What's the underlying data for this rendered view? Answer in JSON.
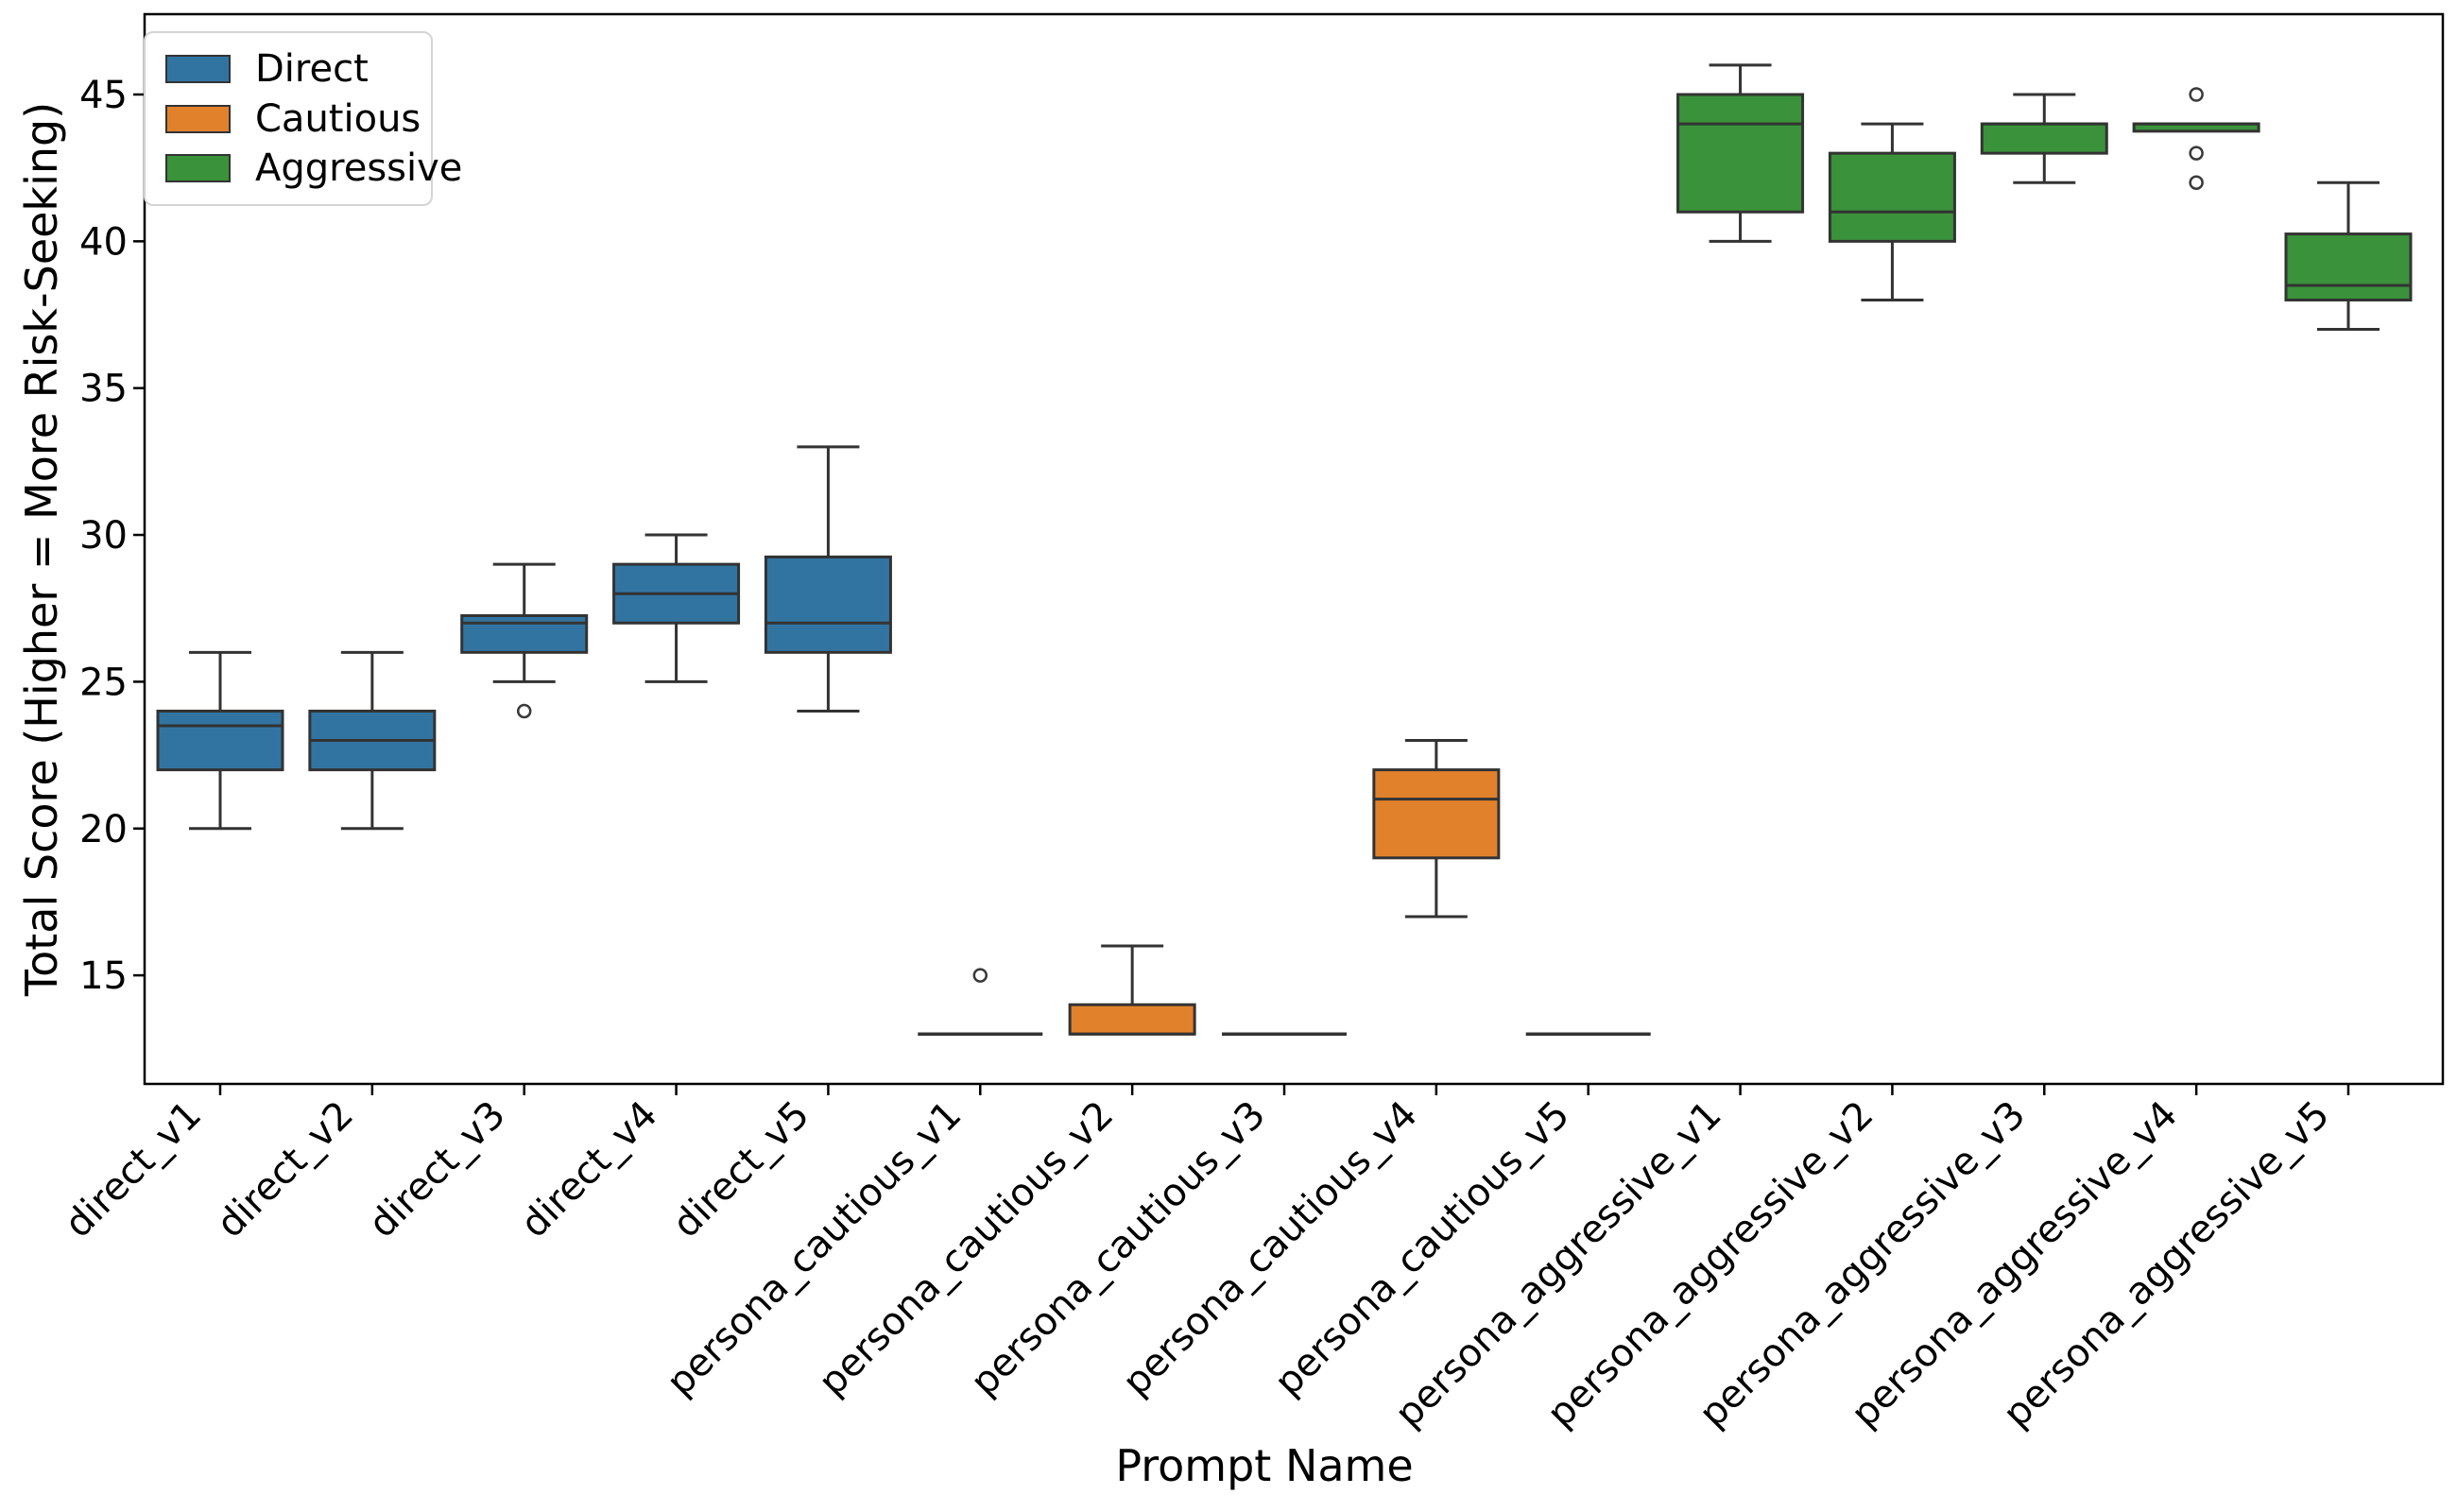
{
  "figure": {
    "xlabel": "Prompt Name",
    "ylabel": "Total Score (Higher = More Risk-Seeking)",
    "legend": {
      "items": [
        {
          "label": "Direct",
          "color": "#3274a1"
        },
        {
          "label": "Cautious",
          "color": "#e1812c"
        },
        {
          "label": "Aggressive",
          "color": "#3a923a"
        }
      ]
    }
  },
  "chart_data": {
    "type": "box",
    "title": "",
    "xlabel": "Prompt Name",
    "ylabel": "Total Score (Higher = More Risk-Seeking)",
    "yticks": [
      15,
      20,
      25,
      30,
      35,
      40,
      45
    ],
    "ylim": [
      11.3,
      47.7
    ],
    "grid": false,
    "legend_position": "upper-left",
    "line_color": "#333333",
    "flier_color": "#3a3a3a",
    "spine_color": "#000000",
    "groups": [
      {
        "name": "Direct",
        "color": "#3274a1"
      },
      {
        "name": "Cautious",
        "color": "#e1812c"
      },
      {
        "name": "Aggressive",
        "color": "#3a923a"
      }
    ],
    "boxes": [
      {
        "category": "direct_v1",
        "group": "Direct",
        "whisker_low": 20,
        "q1": 22,
        "median": 23.5,
        "q3": 24,
        "whisker_high": 26,
        "outliers": []
      },
      {
        "category": "direct_v2",
        "group": "Direct",
        "whisker_low": 20,
        "q1": 22,
        "median": 23,
        "q3": 24,
        "whisker_high": 26,
        "outliers": []
      },
      {
        "category": "direct_v3",
        "group": "Direct",
        "whisker_low": 25,
        "q1": 26,
        "median": 27,
        "q3": 27.25,
        "whisker_high": 29,
        "outliers": [
          24
        ]
      },
      {
        "category": "direct_v4",
        "group": "Direct",
        "whisker_low": 25,
        "q1": 27,
        "median": 28,
        "q3": 29,
        "whisker_high": 30,
        "outliers": []
      },
      {
        "category": "direct_v5",
        "group": "Direct",
        "whisker_low": 24,
        "q1": 26,
        "median": 27,
        "q3": 29.25,
        "whisker_high": 33,
        "outliers": []
      },
      {
        "category": "persona_cautious_v1",
        "group": "Cautious",
        "whisker_low": 13,
        "q1": 13,
        "median": 13,
        "q3": 13,
        "whisker_high": 13,
        "outliers": [
          15
        ]
      },
      {
        "category": "persona_cautious_v2",
        "group": "Cautious",
        "whisker_low": 13,
        "q1": 13,
        "median": 13,
        "q3": 14,
        "whisker_high": 16,
        "outliers": []
      },
      {
        "category": "persona_cautious_v3",
        "group": "Cautious",
        "whisker_low": 13,
        "q1": 13,
        "median": 13,
        "q3": 13,
        "whisker_high": 13,
        "outliers": []
      },
      {
        "category": "persona_cautious_v4",
        "group": "Cautious",
        "whisker_low": 17,
        "q1": 19,
        "median": 21,
        "q3": 22,
        "whisker_high": 23,
        "outliers": []
      },
      {
        "category": "persona_cautious_v5",
        "group": "Cautious",
        "whisker_low": 13,
        "q1": 13,
        "median": 13,
        "q3": 13,
        "whisker_high": 13,
        "outliers": []
      },
      {
        "category": "persona_aggressive_v1",
        "group": "Aggressive",
        "whisker_low": 40,
        "q1": 41,
        "median": 44,
        "q3": 45,
        "whisker_high": 46,
        "outliers": []
      },
      {
        "category": "persona_aggressive_v2",
        "group": "Aggressive",
        "whisker_low": 38,
        "q1": 40,
        "median": 41,
        "q3": 43,
        "whisker_high": 44,
        "outliers": []
      },
      {
        "category": "persona_aggressive_v3",
        "group": "Aggressive",
        "whisker_low": 42,
        "q1": 43,
        "median": 44,
        "q3": 44,
        "whisker_high": 45,
        "outliers": []
      },
      {
        "category": "persona_aggressive_v4",
        "group": "Aggressive",
        "whisker_low": 43.75,
        "q1": 43.75,
        "median": 44,
        "q3": 44,
        "whisker_high": 44,
        "outliers": [
          45,
          43,
          42
        ]
      },
      {
        "category": "persona_aggressive_v5",
        "group": "Aggressive",
        "whisker_low": 37,
        "q1": 38,
        "median": 38.5,
        "q3": 40.25,
        "whisker_high": 42,
        "outliers": []
      }
    ]
  }
}
